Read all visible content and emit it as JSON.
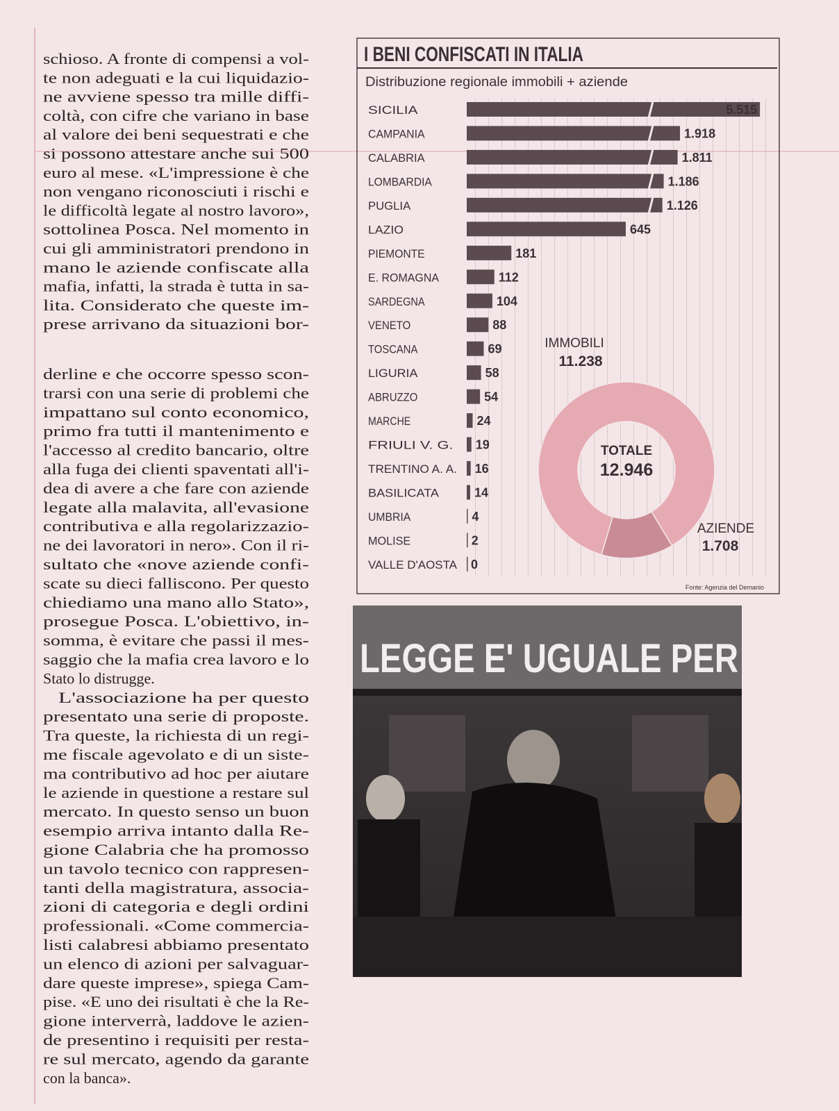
{
  "article": {
    "paragraphs": [
      {
        "lines": [
          "schioso. A fronte di compensi a vol-",
          "te non adeguati e la cui liquidazio-",
          "ne avviene spesso tra mille diffi-",
          "coltà, con cifre che variano in base",
          "al valore dei beni sequestrati e che",
          "si possono attestare anche sui 500",
          "euro al mese. «L'impressione è che",
          "non vengano riconosciuti i rischi e",
          "le difficoltà legate al nostro lavoro»,",
          "sottolinea Posca. Nel momento in",
          "cui gli amministratori prendono in",
          "mano le aziende confiscate alla",
          "mafia, infatti, la strada è tutta in sa-",
          "lita. Considerato che queste im-",
          "prese arrivano da situazioni bor-",
          "derline e che occorre spesso scon-",
          "trarsi con una serie di problemi che",
          "impattano sul conto economico,",
          "primo fra tutti il mantenimento e",
          "l'accesso al credito bancario, oltre",
          "alla fuga dei clienti spaventati all'i-",
          "dea di avere a che fare con aziende",
          "legate alla malavita, all'evasione",
          "contributiva e alla regolarizzazio-",
          "ne dei lavoratori in nero». Con il ri-",
          "sultato che «nove aziende confi-",
          "scate su dieci falliscono. Per questo",
          "chiediamo una mano allo Stato»,",
          "prosegue Posca. L'obiettivo, in-",
          "somma, è evitare che passi il mes-",
          "saggio che la mafia crea lavoro e lo",
          "Stato lo distrugge."
        ]
      },
      {
        "lines": [
          "L'associazione ha per questo",
          "presentato una serie di proposte.",
          "Tra queste, la richiesta di un regi-",
          "me fiscale agevolato e di un siste-",
          "ma contributivo ad hoc per aiutare",
          "le aziende in questione a restare sul",
          "mercato. In questo senso un buon",
          "esempio arriva intanto dalla Re-",
          "gione Calabria che ha promosso",
          "un tavolo tecnico con rappresen-",
          "tanti della magistratura, associa-",
          "zioni di categoria e degli ordini",
          "professionali. «Come commercia-",
          "listi calabresi abbiamo presentato",
          "un elenco di azioni per salvaguar-",
          "dare queste imprese», spiega Cam-",
          "pise. «E uno dei risultati è che la Re-",
          "gione interverrà, laddove le azien-",
          "de presentino i requisiti per resta-",
          "re sul mercato, agendo da garante",
          "con la banca»."
        ]
      }
    ]
  },
  "chart_data": [
    {
      "type": "bar",
      "orientation": "horizontal",
      "axis_break": true,
      "title": "I BENI CONFISCATI IN ITALIA",
      "subtitle": "Distribuzione regionale immobili + aziende",
      "source": "Fonte: Agenzia del Demanio",
      "color": "#5b4a50",
      "categories": [
        "SICILIA",
        "CAMPANIA",
        "CALABRIA",
        "LOMBARDIA",
        "PUGLIA",
        "LAZIO",
        "PIEMONTE",
        "E. ROMAGNA",
        "SARDEGNA",
        "VENETO",
        "TOSCANA",
        "LIGURIA",
        "ABRUZZO",
        "MARCHE",
        "FRIULI V. G.",
        "TRENTINO A. A.",
        "BASILICATA",
        "UMBRIA",
        "MOLISE",
        "VALLE D'AOSTA"
      ],
      "values": [
        5515,
        1918,
        1811,
        1186,
        1126,
        645,
        181,
        112,
        104,
        88,
        69,
        58,
        54,
        24,
        19,
        16,
        14,
        4,
        2,
        0
      ],
      "value_labels": [
        "5.515",
        "1.918",
        "1.811",
        "1.186",
        "1.126",
        "645",
        "181",
        "112",
        "104",
        "88",
        "69",
        "58",
        "54",
        "24",
        "19",
        "16",
        "14",
        "4",
        "2",
        "0"
      ]
    },
    {
      "type": "donut",
      "categories": [
        "IMMOBILI",
        "AZIENDE"
      ],
      "values": [
        11238,
        1708
      ],
      "value_labels": [
        "11.238",
        "1.708"
      ],
      "colors": [
        "#e6aab2",
        "#c98b95"
      ],
      "center_label": "TOTALE",
      "total": 12946,
      "total_label": "12.946"
    }
  ],
  "photo": {
    "inscription": "LEGGE E' UGUALE PER"
  }
}
